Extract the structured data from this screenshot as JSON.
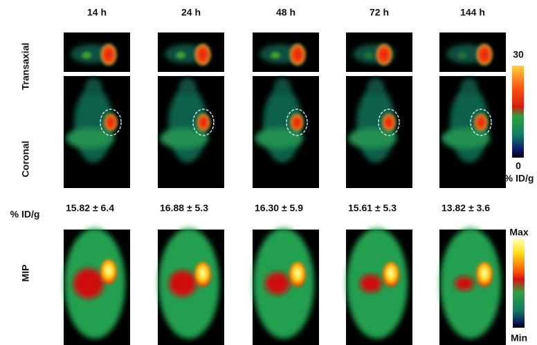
{
  "columns": [
    "14 h",
    "24 h",
    "48 h",
    "72 h",
    "144 h"
  ],
  "row_labels": {
    "transaxial": "Transaxial",
    "coronal": "Coronal",
    "uptake": "% ID/g",
    "mip": "MIP"
  },
  "uptake_values": [
    "15.82 ± 6.4",
    "16.88 ± 5.3",
    "16.30 ± 5.9",
    "15.61 ± 5.3",
    "13.82 ± 3.6"
  ],
  "pet_scale": {
    "max": "30",
    "min": "0",
    "unit": "% ID/g"
  },
  "mip_scale": {
    "max": "Max",
    "min": "Min"
  }
}
